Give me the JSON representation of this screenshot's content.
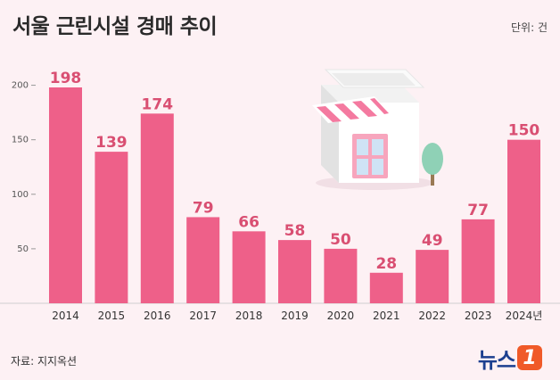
{
  "header": {
    "title": "서울 근린시설 경매 추이",
    "unit": "단위: 건"
  },
  "footer": {
    "source": "자료: 지지옥션",
    "logo_text": "뉴스",
    "logo_badge": "1"
  },
  "colors": {
    "bar": "#ee6089",
    "label": "#d94f72",
    "background": "#fdf1f4"
  },
  "chart_data": {
    "type": "bar",
    "title": "서울 근린시설 경매 추이",
    "ylabel": "",
    "xlabel": "",
    "categories": [
      "2014",
      "2015",
      "2016",
      "2017",
      "2018",
      "2019",
      "2020",
      "2021",
      "2022",
      "2023",
      "2024년"
    ],
    "values": [
      198,
      139,
      174,
      79,
      66,
      58,
      50,
      28,
      49,
      77,
      150
    ],
    "yticks": [
      50,
      100,
      150,
      200
    ],
    "ylim": [
      0,
      220
    ],
    "grid": false,
    "data_labels": true
  }
}
